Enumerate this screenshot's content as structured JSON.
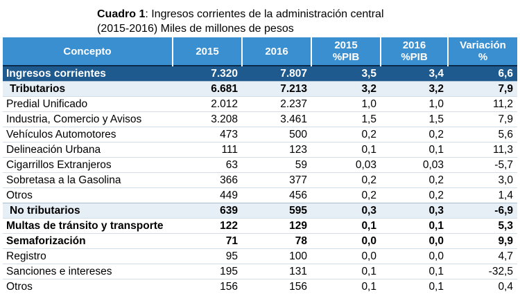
{
  "caption": {
    "label": "Cuadro 1",
    "text": ": Ingresos corrientes de la administración central",
    "line2": "(2015-2016) Miles de millones de pesos"
  },
  "table": {
    "headers": [
      {
        "line1": "Concepto",
        "line2": ""
      },
      {
        "line1": "2015",
        "line2": ""
      },
      {
        "line1": "2016",
        "line2": ""
      },
      {
        "line1": "2015",
        "line2": "%PIB"
      },
      {
        "line1": "2016",
        "line2": "%PIB"
      },
      {
        "line1": "Variación",
        "line2": "%"
      }
    ],
    "rows": [
      {
        "type": "total",
        "cells": [
          "Ingresos corrientes",
          "7.320",
          "7.807",
          "3,5",
          "3,4",
          "6,6"
        ]
      },
      {
        "type": "group",
        "cells": [
          "Tributarios",
          "6.681",
          "7.213",
          "3,2",
          "3,2",
          "7,9"
        ]
      },
      {
        "type": "item",
        "cells": [
          "Predial Unificado",
          "2.012",
          "2.237",
          "1,0",
          "1,0",
          "11,2"
        ]
      },
      {
        "type": "item",
        "cells": [
          "Industria, Comercio y Avisos",
          "3.208",
          "3.461",
          "1,5",
          "1,5",
          "7,9"
        ]
      },
      {
        "type": "item",
        "cells": [
          "Vehículos Automotores",
          "473",
          "500",
          "0,2",
          "0,2",
          "5,6"
        ]
      },
      {
        "type": "item",
        "cells": [
          "Delineación Urbana",
          "111",
          "123",
          "0,1",
          "0,1",
          "11,3"
        ]
      },
      {
        "type": "item",
        "cells": [
          "Cigarrillos Extranjeros",
          "63",
          "59",
          "0,03",
          "0,03",
          "-5,7"
        ]
      },
      {
        "type": "item",
        "cells": [
          "Sobretasa a la Gasolina",
          "366",
          "377",
          "0,2",
          "0,2",
          "3,0"
        ]
      },
      {
        "type": "item",
        "cells": [
          "Otros",
          "449",
          "456",
          "0,2",
          "0,2",
          "1,4"
        ]
      },
      {
        "type": "group",
        "cells": [
          "No tributarios",
          "639",
          "595",
          "0,3",
          "0,3",
          "-6,9"
        ]
      },
      {
        "type": "item bold",
        "cells": [
          "Multas de tránsito y transporte",
          "122",
          "129",
          "0,1",
          "0,1",
          "5,3"
        ]
      },
      {
        "type": "item bold",
        "cells": [
          "Semaforización",
          "71",
          "78",
          "0,0",
          "0,0",
          "9,9"
        ]
      },
      {
        "type": "item",
        "cells": [
          "Registro",
          "95",
          "100",
          "0,0",
          "0,0",
          "4,7"
        ]
      },
      {
        "type": "item",
        "cells": [
          "Sanciones e intereses",
          "195",
          "131",
          "0,1",
          "0,1",
          "-32,5"
        ]
      },
      {
        "type": "item",
        "cells": [
          "Otros",
          "156",
          "156",
          "0,1",
          "0,1",
          "0,4"
        ]
      }
    ]
  }
}
